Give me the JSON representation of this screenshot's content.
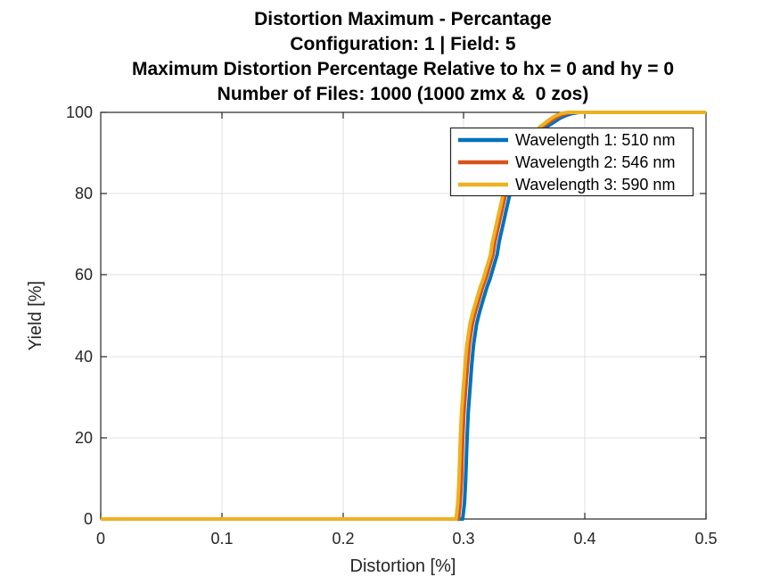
{
  "figure": {
    "background": "#ffffff",
    "axis_color": "#262626",
    "grid_color": "#e0e0e0"
  },
  "chart_data": {
    "type": "line",
    "title_lines": [
      "Distortion Maximum - Percantage",
      "Configuration: 1 | Field: 5",
      "Maximum Distortion Percentage Relative to hx = 0 and hy = 0",
      "Number of Files: 1000 (1000 zmx &  0 zos)"
    ],
    "xlabel": "Distortion [%]",
    "ylabel": "Yield [%]",
    "xlim": [
      0,
      0.5
    ],
    "ylim": [
      0,
      100
    ],
    "x_ticks": [
      0,
      0.1,
      0.2,
      0.3,
      0.4,
      0.5
    ],
    "x_tick_labels": [
      "0",
      "0.1",
      "0.2",
      "0.3",
      "0.4",
      "0.5"
    ],
    "y_ticks": [
      0,
      20,
      40,
      60,
      80,
      100
    ],
    "y_tick_labels": [
      "0",
      "20",
      "40",
      "60",
      "80",
      "100"
    ],
    "grid": true,
    "legend_position": "upper-right-inside",
    "series": [
      {
        "name": "Wavelength 1: 510 nm",
        "wavelength_nm": 510,
        "color": "#0072BD",
        "points": [
          [
            0,
            0
          ],
          [
            0.299,
            0
          ],
          [
            0.3005,
            4
          ],
          [
            0.3015,
            10
          ],
          [
            0.3025,
            19
          ],
          [
            0.3035,
            26
          ],
          [
            0.305,
            32
          ],
          [
            0.3065,
            38
          ],
          [
            0.308,
            43
          ],
          [
            0.3105,
            48
          ],
          [
            0.313,
            51
          ],
          [
            0.316,
            54
          ],
          [
            0.319,
            57
          ],
          [
            0.3215,
            59
          ],
          [
            0.3235,
            61
          ],
          [
            0.3255,
            63
          ],
          [
            0.3275,
            65
          ],
          [
            0.329,
            68
          ],
          [
            0.3305,
            70
          ],
          [
            0.332,
            72
          ],
          [
            0.3335,
            74
          ],
          [
            0.335,
            76
          ],
          [
            0.3365,
            78
          ],
          [
            0.338,
            80
          ],
          [
            0.34,
            82
          ],
          [
            0.3425,
            84
          ],
          [
            0.345,
            86
          ],
          [
            0.348,
            88
          ],
          [
            0.3515,
            90
          ],
          [
            0.355,
            92
          ],
          [
            0.359,
            93.5
          ],
          [
            0.3635,
            95
          ],
          [
            0.3685,
            96.5
          ],
          [
            0.374,
            97.5
          ],
          [
            0.379,
            98.5
          ],
          [
            0.384,
            99.2
          ],
          [
            0.389,
            99.7
          ],
          [
            0.3925,
            99.9
          ],
          [
            0.395,
            100
          ],
          [
            0.5,
            100
          ]
        ]
      },
      {
        "name": "Wavelength 2: 546 nm",
        "wavelength_nm": 546,
        "color": "#D95319",
        "points": [
          [
            0,
            0
          ],
          [
            0.2955,
            0
          ],
          [
            0.297,
            4
          ],
          [
            0.298,
            10
          ],
          [
            0.299,
            19
          ],
          [
            0.3,
            26
          ],
          [
            0.3015,
            32
          ],
          [
            0.303,
            38
          ],
          [
            0.3045,
            43
          ],
          [
            0.307,
            48
          ],
          [
            0.3095,
            51
          ],
          [
            0.3125,
            54
          ],
          [
            0.3155,
            57
          ],
          [
            0.318,
            59
          ],
          [
            0.32,
            61
          ],
          [
            0.322,
            63
          ],
          [
            0.324,
            65
          ],
          [
            0.3255,
            68
          ],
          [
            0.327,
            70
          ],
          [
            0.3285,
            72
          ],
          [
            0.33,
            74
          ],
          [
            0.3315,
            76
          ],
          [
            0.333,
            78
          ],
          [
            0.3345,
            80
          ],
          [
            0.3365,
            82
          ],
          [
            0.339,
            84
          ],
          [
            0.3415,
            86
          ],
          [
            0.3445,
            88
          ],
          [
            0.348,
            90
          ],
          [
            0.3515,
            92
          ],
          [
            0.3555,
            93.5
          ],
          [
            0.36,
            95
          ],
          [
            0.365,
            96.5
          ],
          [
            0.37,
            97.5
          ],
          [
            0.375,
            98.5
          ],
          [
            0.3795,
            99.2
          ],
          [
            0.384,
            99.7
          ],
          [
            0.3875,
            99.9
          ],
          [
            0.39,
            100
          ],
          [
            0.5,
            100
          ]
        ]
      },
      {
        "name": "Wavelength 3: 590 nm",
        "wavelength_nm": 590,
        "color": "#EDB120",
        "points": [
          [
            0,
            0
          ],
          [
            0.2935,
            0
          ],
          [
            0.295,
            4
          ],
          [
            0.296,
            10
          ],
          [
            0.297,
            19
          ],
          [
            0.298,
            26
          ],
          [
            0.2995,
            32
          ],
          [
            0.301,
            38
          ],
          [
            0.3025,
            43
          ],
          [
            0.305,
            48
          ],
          [
            0.3075,
            51
          ],
          [
            0.3105,
            54
          ],
          [
            0.3135,
            57
          ],
          [
            0.316,
            59
          ],
          [
            0.318,
            61
          ],
          [
            0.32,
            63
          ],
          [
            0.322,
            65
          ],
          [
            0.3235,
            68
          ],
          [
            0.325,
            70
          ],
          [
            0.3265,
            72
          ],
          [
            0.328,
            74
          ],
          [
            0.3295,
            76
          ],
          [
            0.331,
            78
          ],
          [
            0.3325,
            80
          ],
          [
            0.3345,
            82
          ],
          [
            0.337,
            84
          ],
          [
            0.3395,
            86
          ],
          [
            0.3425,
            88
          ],
          [
            0.346,
            90
          ],
          [
            0.3495,
            92
          ],
          [
            0.3535,
            93.5
          ],
          [
            0.358,
            95
          ],
          [
            0.363,
            96.5
          ],
          [
            0.3675,
            97.5
          ],
          [
            0.372,
            98.5
          ],
          [
            0.376,
            99.2
          ],
          [
            0.3805,
            99.7
          ],
          [
            0.3835,
            99.9
          ],
          [
            0.386,
            100
          ],
          [
            0.5,
            100
          ]
        ]
      }
    ]
  }
}
